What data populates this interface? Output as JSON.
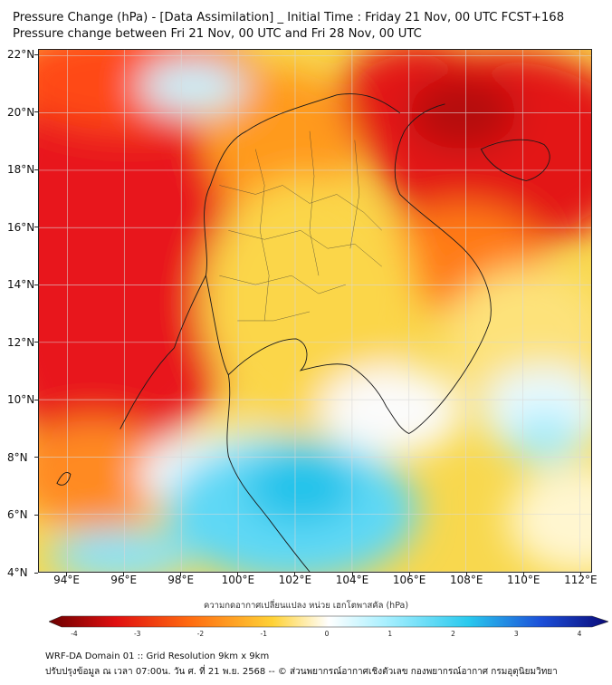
{
  "titles": {
    "line1": "Pressure Change (hPa) - [Data Assimilation] _ Initial Time : Friday 21 Nov, 00 UTC FCST+168",
    "line2": "Pressure change between Fri 21 Nov, 00 UTC and Fri 28 Nov, 00 UTC"
  },
  "map": {
    "lat_labels": [
      "22°N",
      "20°N",
      "18°N",
      "16°N",
      "14°N",
      "12°N",
      "10°N",
      "8°N",
      "6°N",
      "4°N"
    ],
    "lon_labels": [
      "94°E",
      "96°E",
      "98°E",
      "100°E",
      "102°E",
      "104°E",
      "106°E",
      "108°E",
      "110°E",
      "112°E"
    ],
    "lat_values": [
      22,
      20,
      18,
      16,
      14,
      12,
      10,
      8,
      6,
      4
    ],
    "lon_values": [
      94,
      96,
      98,
      100,
      102,
      104,
      106,
      108,
      110,
      112
    ],
    "lon_range": [
      93,
      112.4
    ],
    "lat_range": [
      4,
      22.2
    ],
    "gridlines": true
  },
  "colorbar": {
    "title": "ความกดอากาศเปลี่ยนแปลง หน่วย เฮกโตพาสคัล (hPa)",
    "tick_labels": [
      "-4",
      "-3",
      "-2",
      "-1",
      "0",
      "1",
      "2",
      "3",
      "4"
    ],
    "tick_values": [
      -4,
      -3,
      -2,
      -1,
      0,
      1,
      2,
      3,
      4
    ],
    "range": [
      -4.2,
      4.2
    ],
    "colors": {
      "min": "#6b0000",
      "strong_neg": "#e01010",
      "mid_neg": "#ff6a10",
      "weak_neg": "#ffd236",
      "zero": "#ffffff",
      "weak_pos": "#aaf0ff",
      "mid_pos": "#29c9ee",
      "strong_pos": "#1c4fd8",
      "max": "#0a0a78"
    }
  },
  "footer": {
    "line1": "WRF-DA Domain 01 :: Grid Resolution 9km x 9km",
    "line2": "ปรับปรุงข้อมูล ณ เวลา 07:00น. วัน ศ. ที่ 21 พ.ย. 2568 -- © ส่วนพยากรณ์อากาศเชิงตัวเลข กองพยากรณ์อากาศ กรมอุตุนิยมวิทยา"
  }
}
